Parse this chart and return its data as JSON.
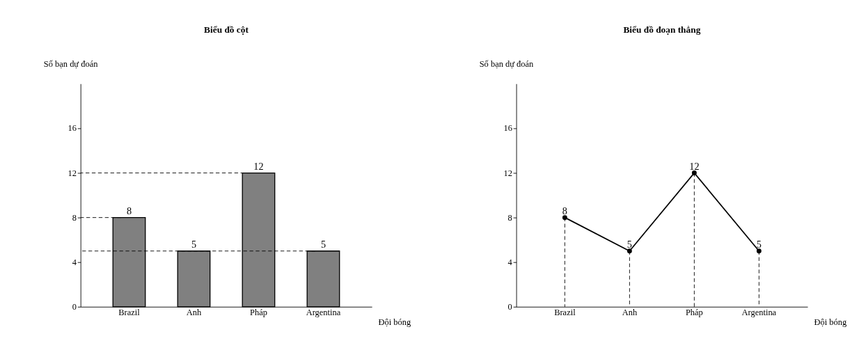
{
  "chart_data": [
    {
      "type": "bar",
      "title": "Biểu đồ cột",
      "xlabel": "Đội bóng",
      "ylabel": "Số bạn dự đoán",
      "categories": [
        "Brazil",
        "Anh",
        "Pháp",
        "Argentina"
      ],
      "values": [
        8,
        5,
        12,
        5
      ],
      "color": "#808080",
      "ylim": [
        0,
        20
      ],
      "yticks": [
        0,
        4,
        8,
        12,
        16
      ],
      "data_labels": true,
      "grid": false,
      "ref_lines": [
        {
          "axis": "y",
          "value": 8,
          "line_style": "dashed",
          "color": "#000000"
        },
        {
          "axis": "y",
          "value": 5,
          "line_style": "dashed",
          "color": "#000000"
        },
        {
          "axis": "y",
          "value": 12,
          "line_style": "dashed",
          "color": "#000000"
        }
      ]
    },
    {
      "type": "line",
      "title": "Biểu đồ đoạn thẳng",
      "xlabel": "Đội bóng",
      "ylabel": "Số bạn dự đoán",
      "categories": [
        "Brazil",
        "Anh",
        "Pháp",
        "Argentina"
      ],
      "values": [
        8,
        5,
        12,
        5
      ],
      "color": "#000000",
      "marker": "circle",
      "line_style": "solid",
      "ylim": [
        0,
        20
      ],
      "yticks": [
        0,
        4,
        8,
        12,
        16
      ],
      "data_labels": true,
      "grid": false
    }
  ]
}
